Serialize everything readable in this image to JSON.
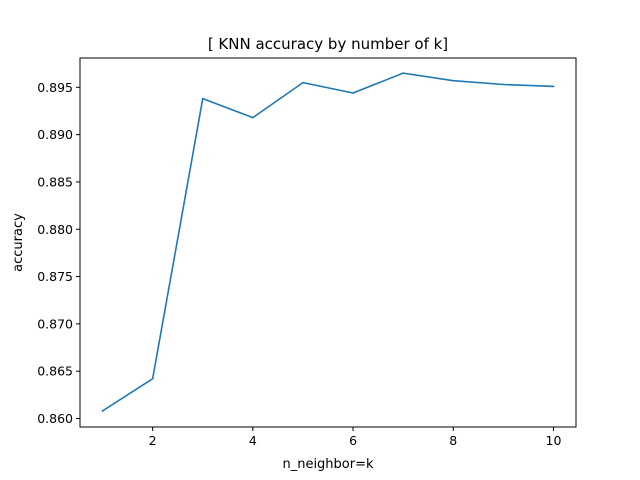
{
  "chart_data": {
    "type": "line",
    "title": "[ KNN accuracy by number of k]",
    "xlabel": "n_neighbor=k",
    "ylabel": "accuracy",
    "x": [
      1,
      2,
      3,
      4,
      5,
      6,
      7,
      8,
      9,
      10
    ],
    "series": [
      {
        "values": [
          0.8608,
          0.8642,
          0.8938,
          0.8918,
          0.8955,
          0.8944,
          0.8965,
          0.8957,
          0.8953,
          0.8951
        ],
        "color": "#1f77b4"
      }
    ],
    "xlim": [
      0.55,
      10.45
    ],
    "ylim": [
      0.8591,
      0.8981
    ],
    "xticks": [
      2,
      4,
      6,
      8,
      10
    ],
    "yticks": [
      0.86,
      0.865,
      0.87,
      0.875,
      0.88,
      0.885,
      0.89,
      0.895
    ],
    "xtick_labels": [
      "2",
      "4",
      "6",
      "8",
      "10"
    ],
    "ytick_labels": [
      "0.860",
      "0.865",
      "0.870",
      "0.875",
      "0.880",
      "0.885",
      "0.890",
      "0.895"
    ],
    "grid": false,
    "legend": "none"
  }
}
